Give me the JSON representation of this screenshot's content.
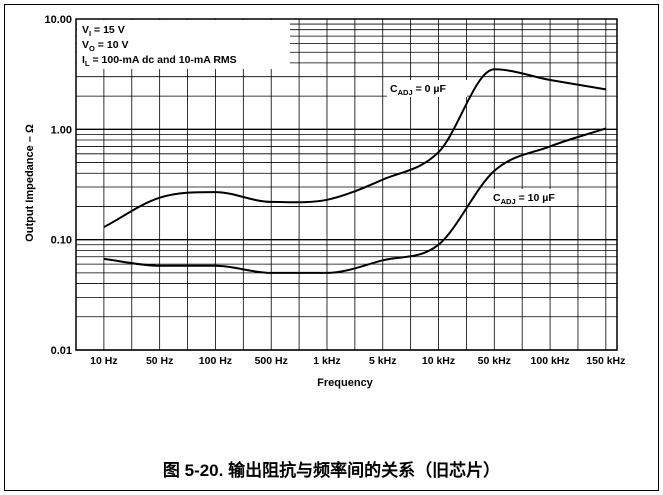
{
  "figure": {
    "caption": "图 5-20. 输出阻抗与频率间的关系（旧芯片）"
  },
  "chart_data": {
    "type": "line",
    "xlabel": "Frequency",
    "ylabel": "Output Impedance – Ω",
    "yscale": "log",
    "ylim": [
      0.01,
      10
    ],
    "y_ticks": [
      "0.01",
      "0.10",
      "1.00",
      "10.00"
    ],
    "x_ticks": [
      "10 Hz",
      "50 Hz",
      "100 Hz",
      "500 Hz",
      "1 kHz",
      "5 kHz",
      "10 kHz",
      "50 kHz",
      "100 kHz",
      "150 kHz"
    ],
    "grid": true,
    "conditions": [
      {
        "main": "V",
        "sub": "I",
        "rest": " = 15 V"
      },
      {
        "main": "V",
        "sub": "O",
        "rest": " = 10 V"
      },
      {
        "main": "I",
        "sub": "L",
        "rest": " = 100-mA dc and 10-mA RMS"
      }
    ],
    "series": [
      {
        "name": "C_ADJ = 0 µF",
        "label": {
          "main": "C",
          "sub": "ADJ",
          "rest": " = 0 µF"
        },
        "x": [
          "10 Hz",
          "50 Hz",
          "100 Hz",
          "500 Hz",
          "1 kHz",
          "5 kHz",
          "10 kHz",
          "50 kHz",
          "100 kHz",
          "150 kHz"
        ],
        "values": [
          0.13,
          0.24,
          0.27,
          0.22,
          0.23,
          0.35,
          0.62,
          3.5,
          2.8,
          2.3
        ]
      },
      {
        "name": "C_ADJ = 10 µF",
        "label": {
          "main": "C",
          "sub": "ADJ",
          "rest": " = 10 µF"
        },
        "x": [
          "10 Hz",
          "50 Hz",
          "100 Hz",
          "500 Hz",
          "1 kHz",
          "5 kHz",
          "10 kHz",
          "50 kHz",
          "100 kHz",
          "150 kHz"
        ],
        "values": [
          0.067,
          0.058,
          0.058,
          0.05,
          0.05,
          0.065,
          0.09,
          0.42,
          0.7,
          1.02
        ]
      }
    ]
  }
}
